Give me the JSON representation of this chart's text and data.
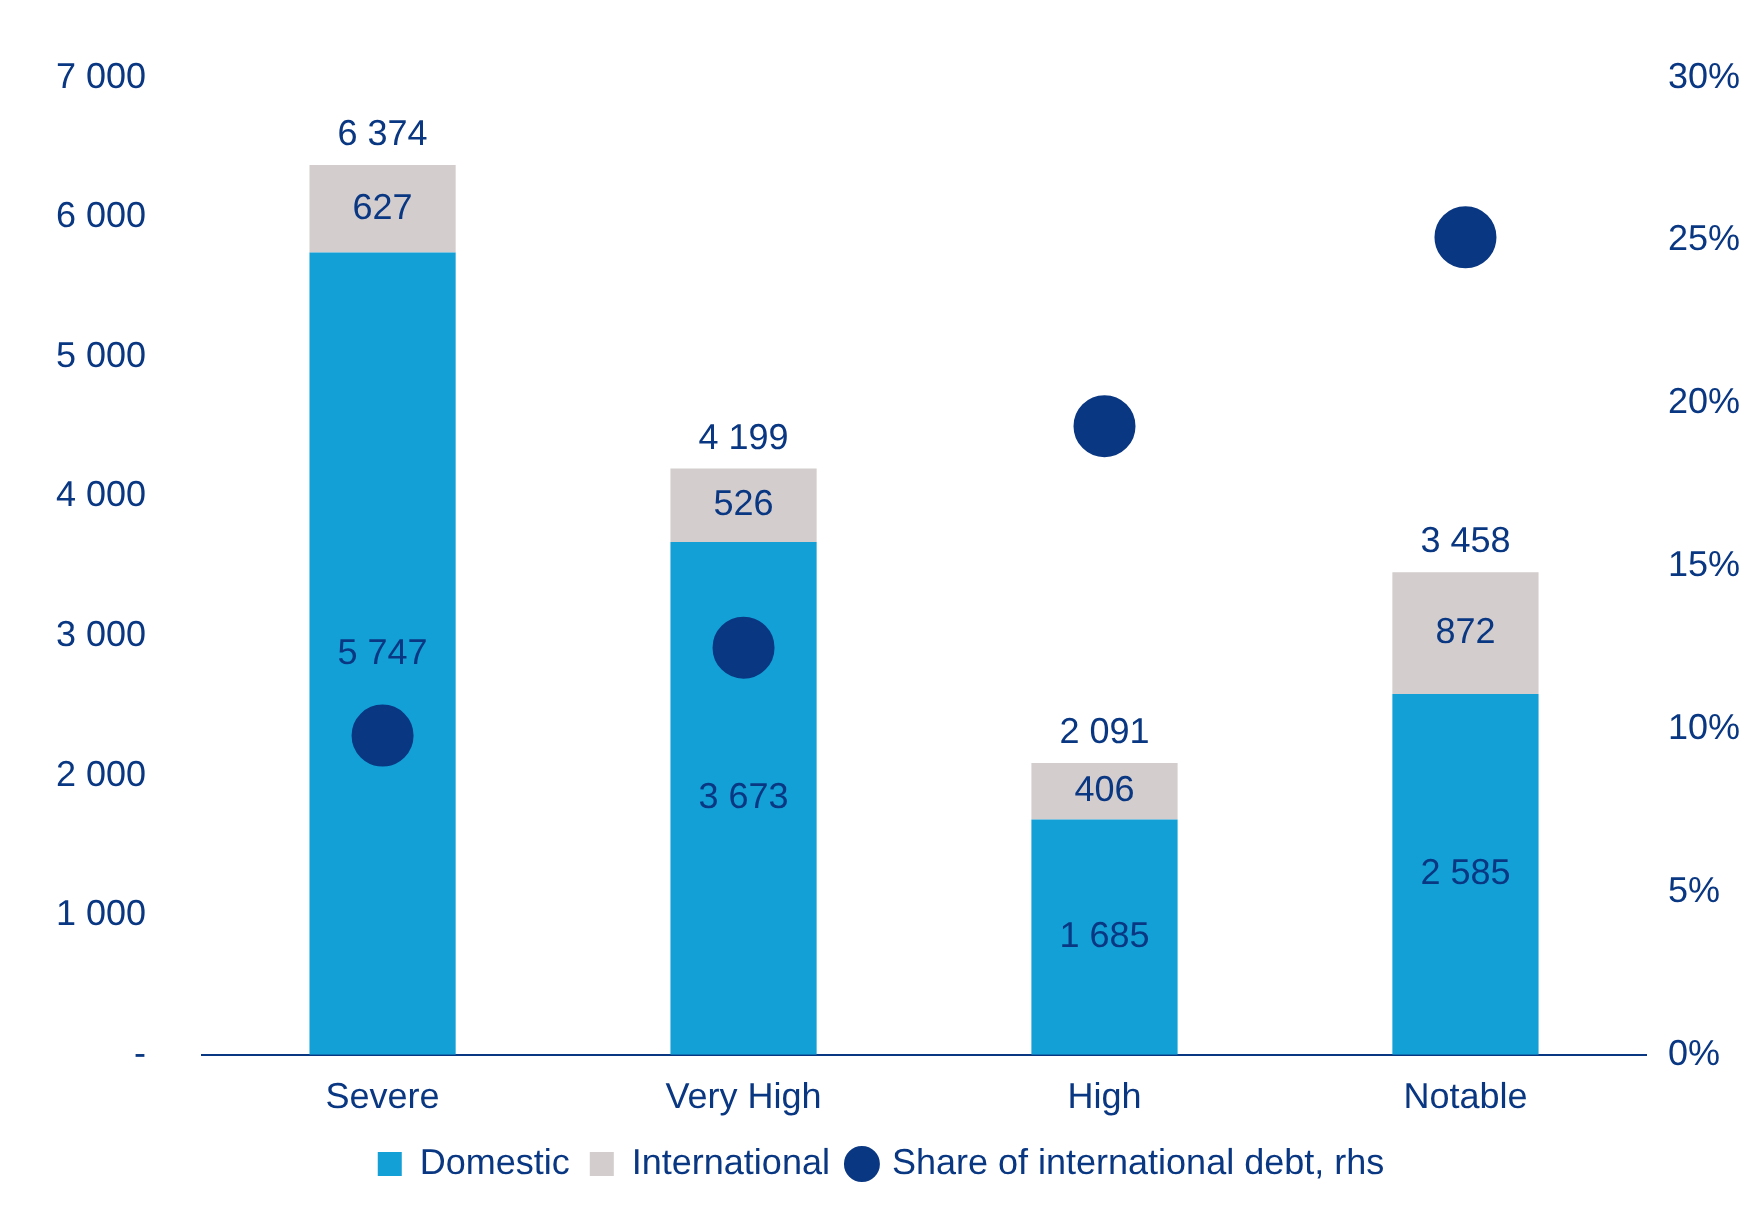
{
  "chart_data": {
    "type": "bar",
    "categories": [
      "Severe",
      "Very High",
      "High",
      "Notable"
    ],
    "stacked": true,
    "legend": "bottom",
    "grid": false,
    "series": [
      {
        "name": "Domestic",
        "type": "bar",
        "color": "#12a0d7",
        "values": [
          5747,
          3673,
          1685,
          2585
        ],
        "value_labels": [
          "5 747",
          "3 673",
          "1 685",
          "2 585"
        ]
      },
      {
        "name": "International",
        "type": "bar",
        "color": "#d3cdcd",
        "values": [
          627,
          526,
          406,
          872
        ],
        "value_labels": [
          "627",
          "526",
          "406",
          "872"
        ]
      },
      {
        "name": "Share of international debt, rhs",
        "type": "scatter",
        "axis": "y2",
        "marker": "circle",
        "color": "#0a3782",
        "values": [
          9.8,
          12.5,
          19.3,
          25.1
        ]
      }
    ],
    "totals": [
      "6 374",
      "4 199",
      "2 091",
      "3 458"
    ],
    "ylim": [
      0,
      7000
    ],
    "yticks": [
      {
        "value": 0,
        "label": "-"
      },
      {
        "value": 1000,
        "label": "1 000"
      },
      {
        "value": 2000,
        "label": "2 000"
      },
      {
        "value": 3000,
        "label": "3 000"
      },
      {
        "value": 4000,
        "label": "4 000"
      },
      {
        "value": 5000,
        "label": "5 000"
      },
      {
        "value": 6000,
        "label": "6 000"
      },
      {
        "value": 7000,
        "label": "7 000"
      }
    ],
    "y2lim": [
      0,
      30
    ],
    "y2ticks": [
      {
        "value": 0,
        "label": "0%"
      },
      {
        "value": 5,
        "label": "5%"
      },
      {
        "value": 10,
        "label": "10%"
      },
      {
        "value": 15,
        "label": "15%"
      },
      {
        "value": 20,
        "label": "20%"
      },
      {
        "value": 25,
        "label": "25%"
      },
      {
        "value": 30,
        "label": "30%"
      }
    ]
  }
}
